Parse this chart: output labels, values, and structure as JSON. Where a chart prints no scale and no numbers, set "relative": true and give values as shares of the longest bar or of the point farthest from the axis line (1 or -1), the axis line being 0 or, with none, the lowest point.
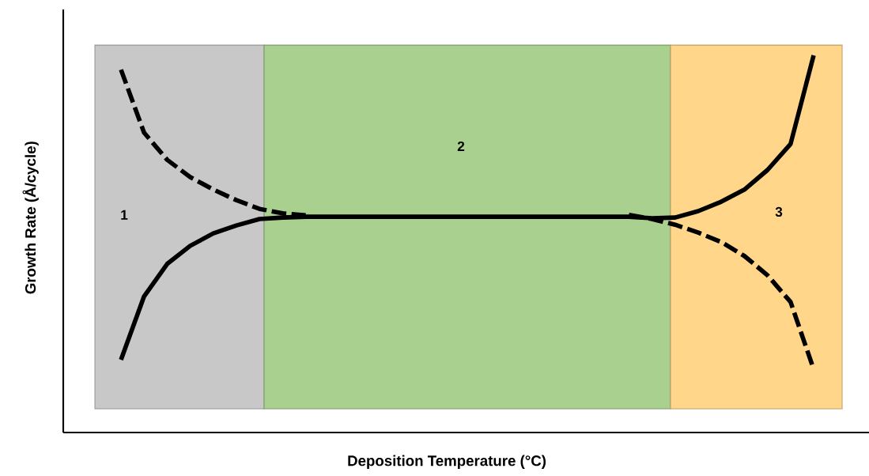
{
  "chart_data": {
    "type": "line",
    "relative": true,
    "xlabel": "Deposition Temperature (°C)",
    "ylabel": "Growth Rate (Å/cycle)",
    "categories": [
      null,
      null,
      null,
      null,
      null,
      null,
      null,
      null,
      null,
      null,
      null,
      null,
      null,
      null,
      null,
      null,
      null,
      null,
      null,
      null,
      null,
      null,
      null,
      null,
      null,
      null,
      null,
      null,
      null,
      null,
      null
    ],
    "series": [
      {
        "color": "#000000",
        "line_style": "dashed",
        "values": [
          0.962,
          0.795,
          0.723,
          0.677,
          0.644,
          0.616,
          0.593,
          0.581,
          0.576,
          null,
          null,
          null,
          null,
          null,
          null,
          null,
          null,
          null,
          null,
          null,
          null,
          null,
          null,
          null,
          null,
          null,
          null,
          null,
          null,
          null,
          null
        ]
      },
      {
        "color": "#000000",
        "line_style": "solid",
        "values": [
          0.193,
          0.361,
          0.447,
          0.495,
          0.528,
          0.549,
          0.566,
          0.57,
          0.572,
          0.572,
          0.572,
          0.572,
          0.572,
          0.572,
          0.572,
          0.572,
          0.572,
          0.572,
          0.572,
          0.572,
          0.572,
          0.572,
          0.572,
          0.568,
          0.57,
          0.587,
          0.612,
          0.644,
          0.696,
          0.765,
          1.0
        ]
      },
      {
        "color": "#000000",
        "line_style": "dashed",
        "values": [
          null,
          null,
          null,
          null,
          null,
          null,
          null,
          null,
          null,
          null,
          null,
          null,
          null,
          null,
          null,
          null,
          null,
          null,
          null,
          null,
          null,
          null,
          0.577,
          0.566,
          0.551,
          0.53,
          0.505,
          0.468,
          0.417,
          0.346,
          0.168
        ]
      }
    ],
    "annotations": [
      "1",
      "2",
      "3"
    ]
  }
}
